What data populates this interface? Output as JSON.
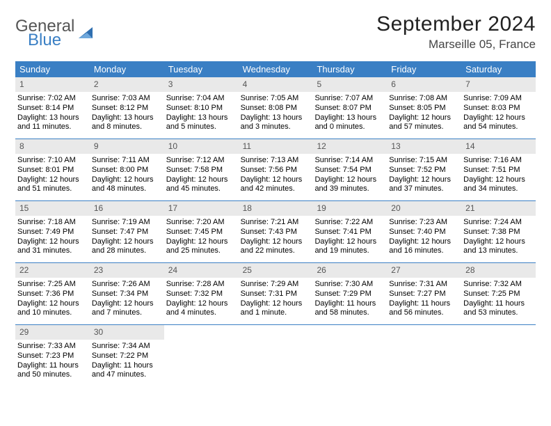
{
  "logo": {
    "word1": "General",
    "word2": "Blue"
  },
  "title": "September 2024",
  "location": "Marseille 05, France",
  "colors": {
    "header_bg": "#3a7fc4",
    "header_text": "#ffffff",
    "daynum_bg": "#e9e9e9",
    "daynum_text": "#555555",
    "row_border": "#3a7fc4",
    "body_bg": "#ffffff",
    "logo_gray": "#555555",
    "logo_blue": "#3a7fc4"
  },
  "weekdays": [
    "Sunday",
    "Monday",
    "Tuesday",
    "Wednesday",
    "Thursday",
    "Friday",
    "Saturday"
  ],
  "weeks": [
    [
      {
        "n": "1",
        "sunrise": "Sunrise: 7:02 AM",
        "sunset": "Sunset: 8:14 PM",
        "d1": "Daylight: 13 hours",
        "d2": "and 11 minutes."
      },
      {
        "n": "2",
        "sunrise": "Sunrise: 7:03 AM",
        "sunset": "Sunset: 8:12 PM",
        "d1": "Daylight: 13 hours",
        "d2": "and 8 minutes."
      },
      {
        "n": "3",
        "sunrise": "Sunrise: 7:04 AM",
        "sunset": "Sunset: 8:10 PM",
        "d1": "Daylight: 13 hours",
        "d2": "and 5 minutes."
      },
      {
        "n": "4",
        "sunrise": "Sunrise: 7:05 AM",
        "sunset": "Sunset: 8:08 PM",
        "d1": "Daylight: 13 hours",
        "d2": "and 3 minutes."
      },
      {
        "n": "5",
        "sunrise": "Sunrise: 7:07 AM",
        "sunset": "Sunset: 8:07 PM",
        "d1": "Daylight: 13 hours",
        "d2": "and 0 minutes."
      },
      {
        "n": "6",
        "sunrise": "Sunrise: 7:08 AM",
        "sunset": "Sunset: 8:05 PM",
        "d1": "Daylight: 12 hours",
        "d2": "and 57 minutes."
      },
      {
        "n": "7",
        "sunrise": "Sunrise: 7:09 AM",
        "sunset": "Sunset: 8:03 PM",
        "d1": "Daylight: 12 hours",
        "d2": "and 54 minutes."
      }
    ],
    [
      {
        "n": "8",
        "sunrise": "Sunrise: 7:10 AM",
        "sunset": "Sunset: 8:01 PM",
        "d1": "Daylight: 12 hours",
        "d2": "and 51 minutes."
      },
      {
        "n": "9",
        "sunrise": "Sunrise: 7:11 AM",
        "sunset": "Sunset: 8:00 PM",
        "d1": "Daylight: 12 hours",
        "d2": "and 48 minutes."
      },
      {
        "n": "10",
        "sunrise": "Sunrise: 7:12 AM",
        "sunset": "Sunset: 7:58 PM",
        "d1": "Daylight: 12 hours",
        "d2": "and 45 minutes."
      },
      {
        "n": "11",
        "sunrise": "Sunrise: 7:13 AM",
        "sunset": "Sunset: 7:56 PM",
        "d1": "Daylight: 12 hours",
        "d2": "and 42 minutes."
      },
      {
        "n": "12",
        "sunrise": "Sunrise: 7:14 AM",
        "sunset": "Sunset: 7:54 PM",
        "d1": "Daylight: 12 hours",
        "d2": "and 39 minutes."
      },
      {
        "n": "13",
        "sunrise": "Sunrise: 7:15 AM",
        "sunset": "Sunset: 7:52 PM",
        "d1": "Daylight: 12 hours",
        "d2": "and 37 minutes."
      },
      {
        "n": "14",
        "sunrise": "Sunrise: 7:16 AM",
        "sunset": "Sunset: 7:51 PM",
        "d1": "Daylight: 12 hours",
        "d2": "and 34 minutes."
      }
    ],
    [
      {
        "n": "15",
        "sunrise": "Sunrise: 7:18 AM",
        "sunset": "Sunset: 7:49 PM",
        "d1": "Daylight: 12 hours",
        "d2": "and 31 minutes."
      },
      {
        "n": "16",
        "sunrise": "Sunrise: 7:19 AM",
        "sunset": "Sunset: 7:47 PM",
        "d1": "Daylight: 12 hours",
        "d2": "and 28 minutes."
      },
      {
        "n": "17",
        "sunrise": "Sunrise: 7:20 AM",
        "sunset": "Sunset: 7:45 PM",
        "d1": "Daylight: 12 hours",
        "d2": "and 25 minutes."
      },
      {
        "n": "18",
        "sunrise": "Sunrise: 7:21 AM",
        "sunset": "Sunset: 7:43 PM",
        "d1": "Daylight: 12 hours",
        "d2": "and 22 minutes."
      },
      {
        "n": "19",
        "sunrise": "Sunrise: 7:22 AM",
        "sunset": "Sunset: 7:41 PM",
        "d1": "Daylight: 12 hours",
        "d2": "and 19 minutes."
      },
      {
        "n": "20",
        "sunrise": "Sunrise: 7:23 AM",
        "sunset": "Sunset: 7:40 PM",
        "d1": "Daylight: 12 hours",
        "d2": "and 16 minutes."
      },
      {
        "n": "21",
        "sunrise": "Sunrise: 7:24 AM",
        "sunset": "Sunset: 7:38 PM",
        "d1": "Daylight: 12 hours",
        "d2": "and 13 minutes."
      }
    ],
    [
      {
        "n": "22",
        "sunrise": "Sunrise: 7:25 AM",
        "sunset": "Sunset: 7:36 PM",
        "d1": "Daylight: 12 hours",
        "d2": "and 10 minutes."
      },
      {
        "n": "23",
        "sunrise": "Sunrise: 7:26 AM",
        "sunset": "Sunset: 7:34 PM",
        "d1": "Daylight: 12 hours",
        "d2": "and 7 minutes."
      },
      {
        "n": "24",
        "sunrise": "Sunrise: 7:28 AM",
        "sunset": "Sunset: 7:32 PM",
        "d1": "Daylight: 12 hours",
        "d2": "and 4 minutes."
      },
      {
        "n": "25",
        "sunrise": "Sunrise: 7:29 AM",
        "sunset": "Sunset: 7:31 PM",
        "d1": "Daylight: 12 hours",
        "d2": "and 1 minute."
      },
      {
        "n": "26",
        "sunrise": "Sunrise: 7:30 AM",
        "sunset": "Sunset: 7:29 PM",
        "d1": "Daylight: 11 hours",
        "d2": "and 58 minutes."
      },
      {
        "n": "27",
        "sunrise": "Sunrise: 7:31 AM",
        "sunset": "Sunset: 7:27 PM",
        "d1": "Daylight: 11 hours",
        "d2": "and 56 minutes."
      },
      {
        "n": "28",
        "sunrise": "Sunrise: 7:32 AM",
        "sunset": "Sunset: 7:25 PM",
        "d1": "Daylight: 11 hours",
        "d2": "and 53 minutes."
      }
    ],
    [
      {
        "n": "29",
        "sunrise": "Sunrise: 7:33 AM",
        "sunset": "Sunset: 7:23 PM",
        "d1": "Daylight: 11 hours",
        "d2": "and 50 minutes."
      },
      {
        "n": "30",
        "sunrise": "Sunrise: 7:34 AM",
        "sunset": "Sunset: 7:22 PM",
        "d1": "Daylight: 11 hours",
        "d2": "and 47 minutes."
      },
      null,
      null,
      null,
      null,
      null
    ]
  ]
}
